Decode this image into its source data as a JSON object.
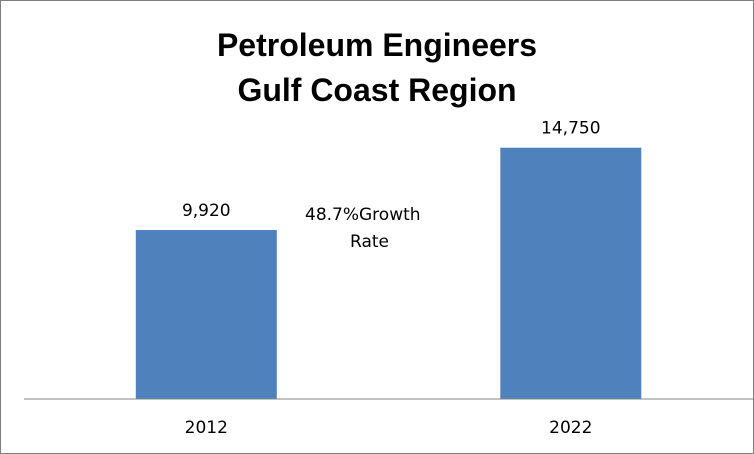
{
  "chart_data": {
    "type": "bar",
    "title_lines": [
      "Petroleum Engineers",
      "Gulf Coast Region"
    ],
    "categories": [
      "2012",
      "2022"
    ],
    "values": [
      9920,
      14750
    ],
    "value_labels": [
      "9,920",
      "14,750"
    ],
    "annotation_lines": [
      "48.7%Growth",
      "Rate"
    ],
    "xlabel": "",
    "ylabel": "",
    "ylim": [
      0,
      17200
    ],
    "grid": false,
    "legend": "none",
    "bar_color": "#4f81bd"
  }
}
